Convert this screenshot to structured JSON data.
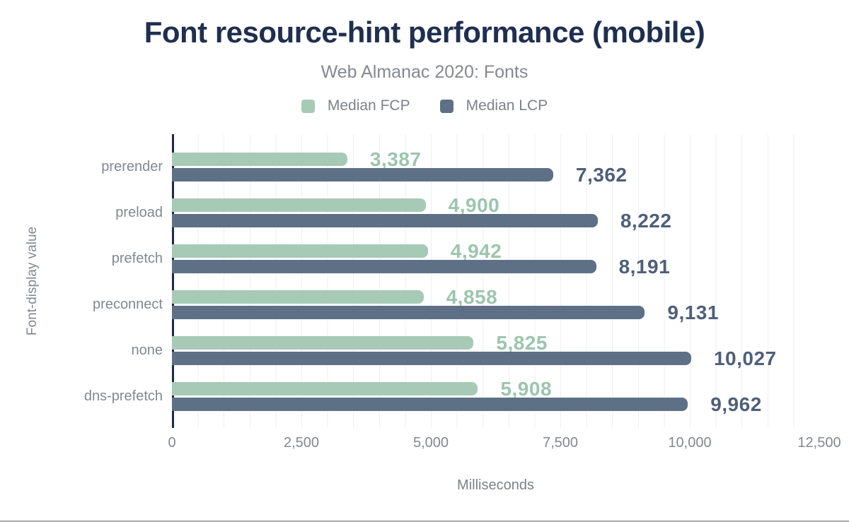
{
  "header": {
    "title": "Font resource-hint performance (mobile)",
    "subtitle": "Web Almanac 2020: Fonts"
  },
  "chart_data": {
    "type": "bar",
    "orientation": "horizontal",
    "title": "Font resource-hint performance (mobile)",
    "subtitle": "Web Almanac 2020: Fonts",
    "xlabel": "Milliseconds",
    "ylabel": "Font-display value",
    "categories": [
      "prerender",
      "preload",
      "prefetch",
      "preconnect",
      "none",
      "dns-prefetch"
    ],
    "series": [
      {
        "name": "Median FCP",
        "color": "#a7cab6",
        "label_color": "#9cc5ae",
        "values": [
          3387,
          4900,
          4942,
          4858,
          5825,
          5908
        ],
        "labels": [
          "3,387",
          "4,900",
          "4,942",
          "4,858",
          "5,825",
          "5,908"
        ]
      },
      {
        "name": "Median LCP",
        "color": "#5e7085",
        "label_color": "#4e5f7a",
        "values": [
          7362,
          8222,
          8191,
          9131,
          10027,
          9962
        ],
        "labels": [
          "7,362",
          "8,222",
          "8,191",
          "9,131",
          "10,027",
          "9,962"
        ]
      }
    ],
    "xlim": [
      0,
      12500
    ],
    "xticks": [
      0,
      2500,
      5000,
      7500,
      10000,
      12500
    ],
    "xtick_labels": [
      "0",
      "2,500",
      "5,000",
      "7,500",
      "10,000",
      "12,500"
    ],
    "grid": "minor vertical gridlines every 500 ms",
    "legend_position": "top center",
    "axis_color": "#1b2a45",
    "gridline_color": "#edeff2"
  }
}
